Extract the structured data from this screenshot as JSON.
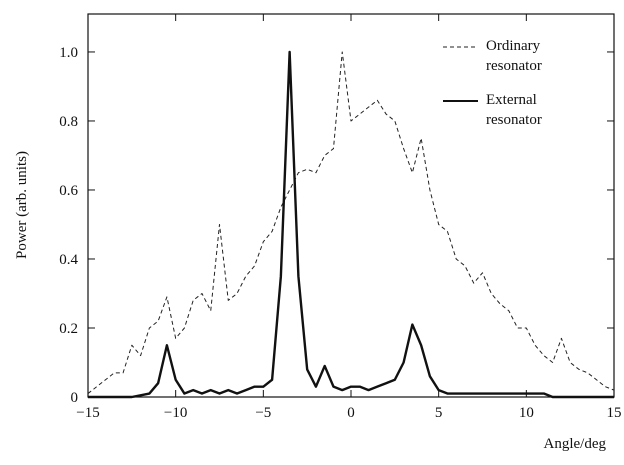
{
  "chart_data": {
    "type": "line",
    "xlabel": "Angle/deg",
    "ylabel": "Power (arb. units)",
    "x": [
      -15,
      -14.5,
      -14,
      -13.5,
      -13,
      -12.5,
      -12,
      -11.5,
      -11,
      -10.5,
      -10,
      -9.5,
      -9,
      -8.5,
      -8,
      -7.5,
      -7,
      -6.5,
      -6,
      -5.5,
      -5,
      -4.5,
      -4,
      -3.5,
      -3,
      -2.5,
      -2,
      -1.5,
      -1,
      -0.5,
      0,
      0.5,
      1,
      1.5,
      2,
      2.5,
      3,
      3.5,
      4,
      4.5,
      5,
      5.5,
      6,
      6.5,
      7,
      7.5,
      8,
      8.5,
      9,
      9.5,
      10,
      10.5,
      11,
      11.5,
      12,
      12.5,
      13,
      13.5,
      14,
      14.5,
      15
    ],
    "series": [
      {
        "name": "Ordinary resonator",
        "color": "#222222",
        "dash": true,
        "values": [
          0.01,
          0.03,
          0.05,
          0.07,
          0.07,
          0.15,
          0.12,
          0.2,
          0.22,
          0.29,
          0.17,
          0.2,
          0.28,
          0.3,
          0.25,
          0.5,
          0.28,
          0.3,
          0.35,
          0.38,
          0.45,
          0.48,
          0.55,
          0.6,
          0.65,
          0.66,
          0.65,
          0.7,
          0.72,
          1.0,
          0.8,
          0.82,
          0.84,
          0.86,
          0.82,
          0.8,
          0.72,
          0.65,
          0.75,
          0.6,
          0.5,
          0.48,
          0.4,
          0.38,
          0.33,
          0.36,
          0.3,
          0.27,
          0.25,
          0.2,
          0.2,
          0.15,
          0.12,
          0.1,
          0.17,
          0.1,
          0.08,
          0.07,
          0.05,
          0.03,
          0.02
        ]
      },
      {
        "name": "External resonator",
        "color": "#111111",
        "dash": false,
        "values": [
          0,
          0,
          0,
          0,
          0,
          0,
          0.005,
          0.01,
          0.04,
          0.15,
          0.05,
          0.01,
          0.02,
          0.01,
          0.02,
          0.01,
          0.02,
          0.01,
          0.02,
          0.03,
          0.03,
          0.05,
          0.35,
          1.0,
          0.35,
          0.08,
          0.03,
          0.09,
          0.03,
          0.02,
          0.03,
          0.03,
          0.02,
          0.03,
          0.04,
          0.05,
          0.1,
          0.21,
          0.15,
          0.06,
          0.02,
          0.01,
          0.01,
          0.01,
          0.01,
          0.01,
          0.01,
          0.01,
          0.01,
          0.01,
          0.01,
          0.01,
          0.01,
          0,
          0,
          0,
          0,
          0,
          0,
          0,
          0
        ]
      }
    ],
    "xlim": [
      -15,
      15
    ],
    "xticks": [
      {
        "value": -15,
        "label": "−15"
      },
      {
        "value": -10,
        "label": "−10"
      },
      {
        "value": -5,
        "label": "−5"
      },
      0,
      5,
      10,
      15
    ],
    "ylim": [
      0,
      1.11
    ],
    "yticks": [
      0,
      0.2,
      0.4,
      0.6,
      0.8,
      {
        "value": 1,
        "label": "1.0"
      }
    ]
  }
}
